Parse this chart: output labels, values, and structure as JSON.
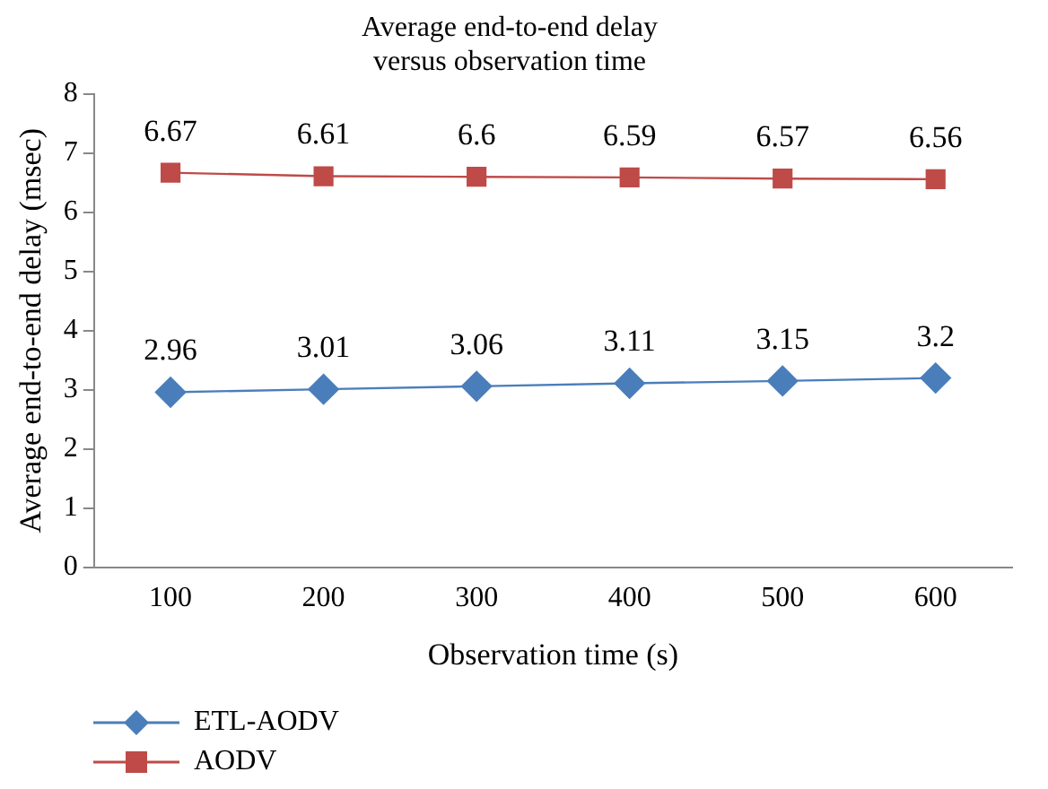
{
  "chart_data": {
    "type": "line",
    "title": "Average end-to-end delay\nversus observation time",
    "xlabel": "Observation time (s)",
    "ylabel": "Average end-to-end delay (msec)",
    "categories": [
      "100",
      "200",
      "300",
      "400",
      "500",
      "600"
    ],
    "series": [
      {
        "name": "ETL-AODV",
        "color": "#4a7ebb",
        "marker": "diamond",
        "values": [
          2.96,
          3.01,
          3.06,
          3.11,
          3.15,
          3.2
        ]
      },
      {
        "name": "AODV",
        "color": "#be4b48",
        "marker": "square",
        "values": [
          6.67,
          6.61,
          6.6,
          6.59,
          6.57,
          6.56
        ]
      }
    ],
    "ylim": [
      0,
      8
    ],
    "yticks": [
      0,
      1,
      2,
      3,
      4,
      5,
      6,
      7,
      8
    ],
    "grid": false,
    "legend": "bottom",
    "data_labels": true,
    "line_style": "solid"
  }
}
